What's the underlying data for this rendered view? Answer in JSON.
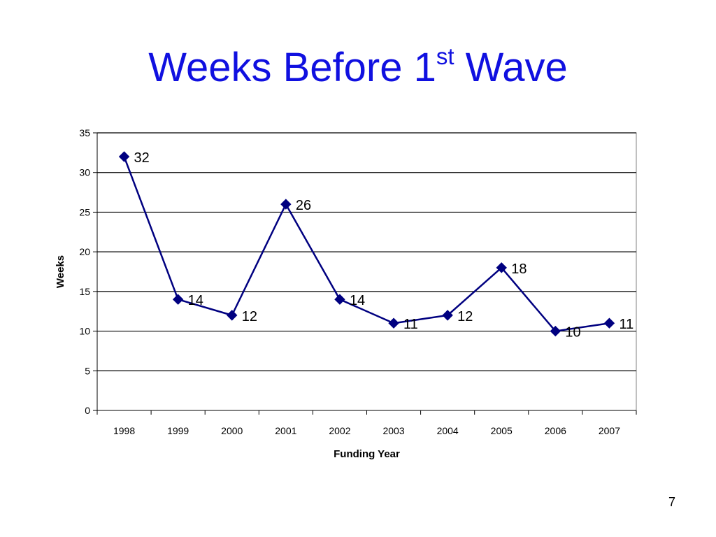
{
  "slide": {
    "title_main": "Weeks Before 1",
    "title_sup": "st",
    "title_end": " Wave",
    "page_number": "7"
  },
  "chart_data": {
    "type": "line",
    "title": "",
    "xlabel": "Funding Year",
    "ylabel": "Weeks",
    "categories": [
      "1998",
      "1999",
      "2000",
      "2001",
      "2002",
      "2003",
      "2004",
      "2005",
      "2006",
      "2007"
    ],
    "series": [
      {
        "values": [
          32,
          14,
          12,
          26,
          14,
          11,
          12,
          18,
          10,
          11
        ]
      }
    ],
    "ylim": [
      0,
      35
    ],
    "yticks": [
      0,
      5,
      10,
      15,
      20,
      25,
      30,
      35
    ],
    "grid": "horizontal",
    "data_labels": true,
    "legend": "none",
    "line_color": "#000080",
    "marker": "diamond"
  }
}
